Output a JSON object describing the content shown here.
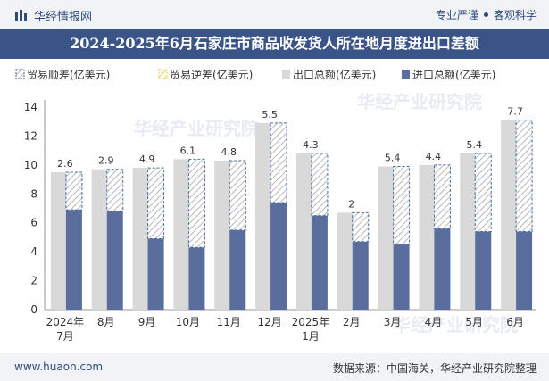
{
  "header": {
    "brand": "华经情报网",
    "tagline_a": "专业严谨",
    "tagline_b": "客观科学"
  },
  "title": "2024-2025年6月石家庄市商品收发货人所在地月度进出口差额",
  "footer": {
    "url": "www.huaon.com",
    "source": "数据来源：中国海关，华经产业研究院整理"
  },
  "watermark": "华经产业研究院",
  "colors": {
    "export": "#d9d9d9",
    "import": "#5a6e9e",
    "surplus_border": "#4a6fa5",
    "deficit_border": "#e8d35a",
    "title_bg": "#3a5488"
  },
  "chart_data": {
    "type": "bar",
    "title": "2024-2025年6月石家庄市商品收发货人所在地月度进出口差额",
    "categories": [
      "2024年\n7月",
      "8月",
      "9月",
      "10月",
      "11月",
      "12月",
      "2025年\n1月",
      "2月",
      "3月",
      "4月",
      "5月",
      "6月"
    ],
    "series": [
      {
        "name": "贸易顺差(亿美元)",
        "values": [
          2.6,
          2.9,
          4.9,
          6.1,
          4.8,
          5.5,
          4.3,
          2.0,
          5.4,
          4.4,
          5.4,
          7.7
        ]
      },
      {
        "name": "贸易逆差(亿美元)",
        "values": [
          0,
          0,
          0,
          0,
          0,
          0,
          0,
          0,
          0,
          0,
          0,
          0
        ]
      },
      {
        "name": "出口总额(亿美元)",
        "values": [
          9.5,
          9.7,
          9.8,
          10.4,
          10.3,
          12.9,
          10.8,
          6.7,
          9.9,
          10.0,
          10.8,
          13.1
        ]
      },
      {
        "name": "进口总额(亿美元)",
        "values": [
          6.9,
          6.8,
          4.9,
          4.3,
          5.5,
          7.4,
          6.5,
          4.7,
          4.5,
          5.6,
          5.4,
          5.4
        ]
      }
    ],
    "surplus_labels": [
      "2.6",
      "2.9",
      "4.9",
      "6.1",
      "4.8",
      "5.5",
      "4.3",
      "2",
      "5.4",
      "4.4",
      "5.4",
      "7.7"
    ],
    "ylim": [
      0,
      14
    ],
    "yticks": [
      0,
      2,
      4,
      6,
      8,
      10,
      12,
      14
    ],
    "legend_position": "top",
    "grid": false
  }
}
